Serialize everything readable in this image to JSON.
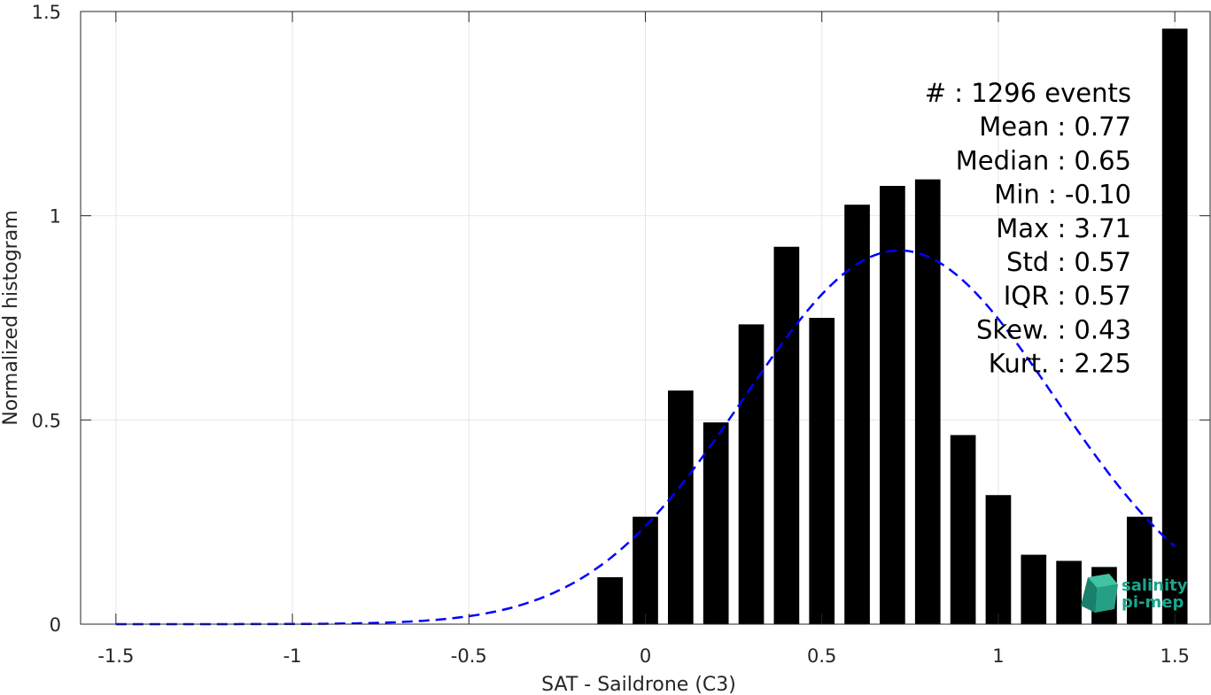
{
  "chart_data": {
    "type": "bar",
    "xlabel": "SAT - Saildrone (C3)",
    "ylabel": "Normalized histogram",
    "xlim": [
      -1.6,
      1.6
    ],
    "ylim": [
      0,
      1.5
    ],
    "xticks": [
      -1.5,
      -1,
      -0.5,
      0,
      0.5,
      1,
      1.5
    ],
    "xtick_labels": [
      "-1.5",
      "-1",
      "-0.5",
      "0",
      "0.5",
      "1",
      "1.5"
    ],
    "yticks": [
      0,
      0.5,
      1,
      1.5
    ],
    "ytick_labels": [
      "0",
      "0.5",
      "1",
      "1.5"
    ],
    "grid": true,
    "bar_color": "#000000",
    "bars": {
      "x": [
        -0.1,
        0.0,
        0.1,
        0.2,
        0.3,
        0.4,
        0.5,
        0.6,
        0.7,
        0.8,
        0.9,
        1.0,
        1.1,
        1.2,
        1.3,
        1.4,
        1.5
      ],
      "values": [
        0.115,
        0.263,
        0.572,
        0.494,
        0.734,
        0.924,
        0.75,
        1.027,
        1.073,
        1.089,
        0.463,
        0.316,
        0.17,
        0.155,
        0.14,
        0.263,
        1.458
      ]
    },
    "fit_curve": {
      "style": "dashed",
      "color": "#0000ff",
      "mean": 0.72,
      "std": 0.44,
      "peak": 0.915,
      "x_range": [
        -1.5,
        1.5
      ]
    },
    "stats": [
      "#  : 1296 events",
      "Mean : 0.77",
      "Median : 0.65",
      "Min : -0.10",
      "Max : 3.71",
      "Std : 0.57",
      "IQR : 0.57",
      "Skew. : 0.43",
      "Kurt. : 2.25"
    ]
  },
  "logo": {
    "line1": "salinity",
    "line2": "pi-mep",
    "color": "#1aa58c"
  }
}
